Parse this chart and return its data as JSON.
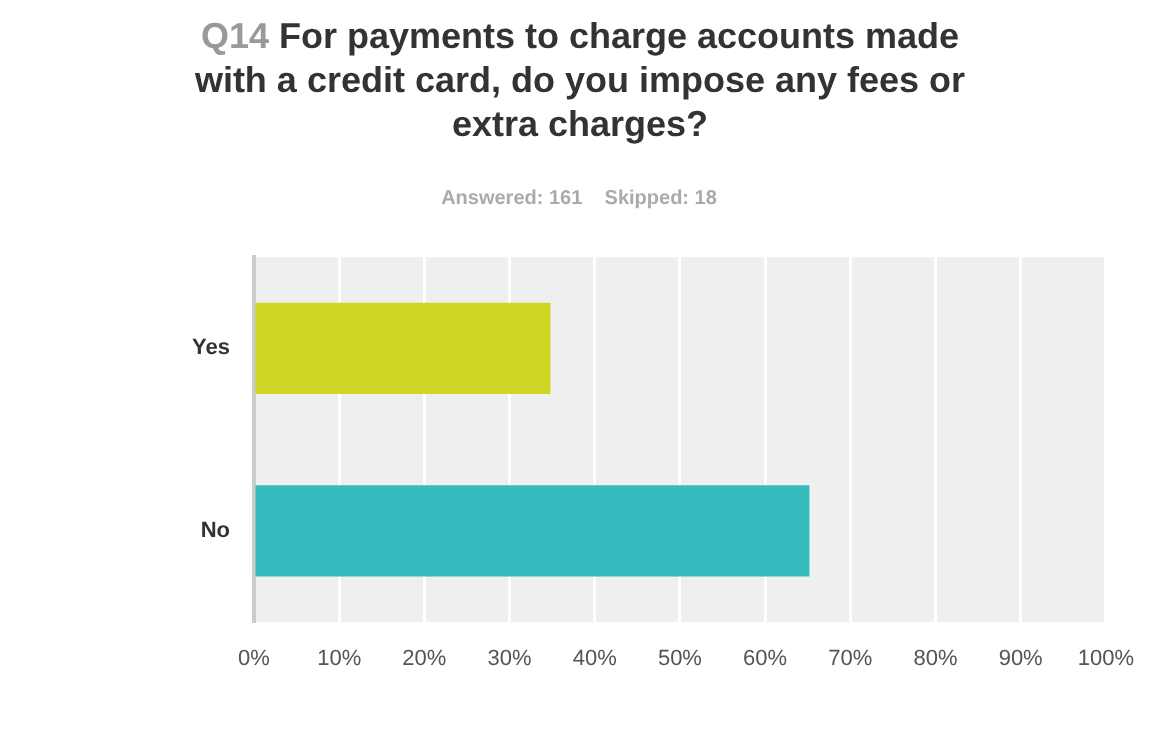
{
  "chart_data": {
    "type": "bar",
    "orientation": "horizontal",
    "title": "Q14 For payments to charge accounts made with a credit card, do you impose any fees or extra charges?",
    "subtitle": "Answered: 161    Skipped: 18",
    "categories": [
      "Yes",
      "No"
    ],
    "values": [
      34.8,
      65.2
    ],
    "colors": [
      "#d1d626",
      "#34bcbf"
    ],
    "xlim": [
      0,
      100
    ],
    "xticks": [
      {
        "value": 0,
        "label": "0%"
      },
      {
        "value": 10,
        "label": "10%"
      },
      {
        "value": 20,
        "label": "20%"
      },
      {
        "value": 30,
        "label": "30%"
      },
      {
        "value": 40,
        "label": "40%"
      },
      {
        "value": 50,
        "label": "50%"
      },
      {
        "value": 60,
        "label": "60%"
      },
      {
        "value": 70,
        "label": "70%"
      },
      {
        "value": 80,
        "label": "80%"
      },
      {
        "value": 90,
        "label": "90%"
      },
      {
        "value": 100,
        "label": "100%"
      }
    ],
    "grid": "x",
    "legend": false
  }
}
